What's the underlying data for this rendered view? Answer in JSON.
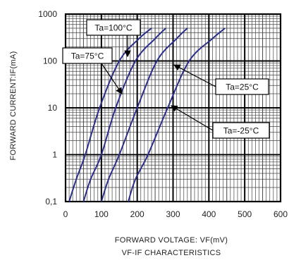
{
  "chart_data": {
    "type": "line",
    "title": "VF-IF CHARACTERISTICS",
    "xlabel": "FORWARD VOLTAGE: VF(mV)",
    "ylabel": "FORWARD CURRENT:IF(mA)",
    "xlim": [
      0,
      600
    ],
    "ylim": [
      0.1,
      1000
    ],
    "yscale": "log",
    "grid": true,
    "x_ticks": [
      "0",
      "100",
      "200",
      "300",
      "400",
      "500",
      "600"
    ],
    "y_ticks": [
      "0,1",
      "1",
      "10",
      "100",
      "1000"
    ],
    "series": [
      {
        "name": "Ta=100°C",
        "points": [
          [
            10,
            0.1
          ],
          [
            30,
            0.3
          ],
          [
            55,
            1
          ],
          [
            95,
            10
          ],
          [
            150,
            100
          ],
          [
            205,
            300
          ],
          [
            240,
            500
          ]
        ]
      },
      {
        "name": "Ta=75°C",
        "points": [
          [
            50,
            0.1
          ],
          [
            70,
            0.3
          ],
          [
            100,
            1
          ],
          [
            140,
            10
          ],
          [
            195,
            100
          ],
          [
            250,
            300
          ],
          [
            280,
            500
          ]
        ]
      },
      {
        "name": "Ta=25°C",
        "points": [
          [
            100,
            0.1
          ],
          [
            120,
            0.3
          ],
          [
            150,
            1
          ],
          [
            200,
            10
          ],
          [
            255,
            100
          ],
          [
            310,
            300
          ],
          [
            340,
            500
          ]
        ]
      },
      {
        "name": "Ta=-25°C",
        "points": [
          [
            175,
            0.1
          ],
          [
            195,
            0.3
          ],
          [
            230,
            1
          ],
          [
            285,
            10
          ],
          [
            345,
            100
          ],
          [
            410,
            300
          ],
          [
            445,
            500
          ]
        ]
      }
    ],
    "annotations": [
      {
        "text": "Ta=100°C",
        "series": "Ta=100°C"
      },
      {
        "text": "Ta=75°C",
        "series": "Ta=75°C"
      },
      {
        "text": "Ta=25°C",
        "series": "Ta=25°C"
      },
      {
        "text": "Ta=-25°C",
        "series": "Ta=-25°C"
      }
    ],
    "line_color": "#2a2f8a"
  }
}
